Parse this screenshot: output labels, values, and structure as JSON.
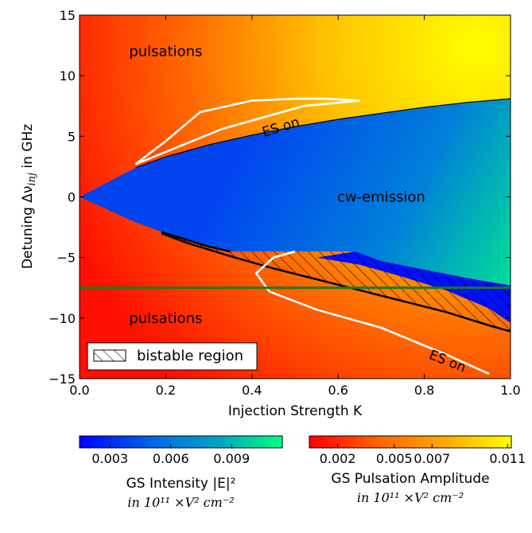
{
  "chart_data": {
    "type": "heatmap",
    "title": "",
    "xlabel": "Injection Strength K",
    "ylabel_prefix": "Detuning Δν",
    "ylabel_subscript": "inj",
    "ylabel_suffix": " in GHz",
    "xlim": [
      0.0,
      1.0
    ],
    "ylim": [
      -15,
      15
    ],
    "x_ticks": [
      0.0,
      0.2,
      0.4,
      0.6,
      0.8,
      1.0
    ],
    "x_tick_labels": [
      "0.0",
      "0.2",
      "0.4",
      "0.6",
      "0.8",
      "1.0"
    ],
    "y_ticks": [
      -15,
      -10,
      -5,
      0,
      5,
      10,
      15
    ],
    "y_tick_labels": [
      "−15",
      "−10",
      "−5",
      "0",
      "5",
      "10",
      "15"
    ],
    "regions": {
      "cw_upper_boundary": [
        [
          0.0,
          0.0
        ],
        [
          0.13,
          2.4
        ],
        [
          0.2,
          3.3
        ],
        [
          0.3,
          4.3
        ],
        [
          0.4,
          5.1
        ],
        [
          0.5,
          5.8
        ],
        [
          0.6,
          6.4
        ],
        [
          0.7,
          6.9
        ],
        [
          0.8,
          7.4
        ],
        [
          0.9,
          7.8
        ],
        [
          1.0,
          8.1
        ]
      ],
      "cw_lower_boundary": [
        [
          0.0,
          0.0
        ],
        [
          0.13,
          -2.1
        ],
        [
          0.2,
          -3.0
        ],
        [
          0.3,
          -4.1
        ],
        [
          0.35,
          -4.5
        ],
        [
          0.5,
          -4.5
        ],
        [
          0.64,
          -4.5
        ],
        [
          0.7,
          -5.3
        ],
        [
          0.8,
          -6.0
        ],
        [
          0.9,
          -6.7
        ],
        [
          1.0,
          -7.3
        ]
      ],
      "blue_lower_strip": [
        [
          0.55,
          -5.0
        ],
        [
          0.65,
          -5.6
        ],
        [
          0.75,
          -6.6
        ],
        [
          0.85,
          -7.7
        ],
        [
          0.95,
          -9.2
        ],
        [
          1.0,
          -10.4
        ]
      ],
      "bistable_lower": [
        [
          0.19,
          -3.0
        ],
        [
          0.25,
          -3.8
        ],
        [
          0.35,
          -4.9
        ],
        [
          0.45,
          -5.9
        ],
        [
          0.55,
          -6.8
        ],
        [
          0.65,
          -7.7
        ],
        [
          0.75,
          -8.6
        ],
        [
          0.85,
          -9.5
        ],
        [
          0.95,
          -10.6
        ],
        [
          1.0,
          -11.1
        ]
      ]
    },
    "es_on_curves": [
      {
        "name": "ES on (upper)",
        "points": [
          [
            0.13,
            2.7
          ],
          [
            0.2,
            4.6
          ],
          [
            0.28,
            7.0
          ],
          [
            0.4,
            7.95
          ],
          [
            0.5,
            8.1
          ],
          [
            0.57,
            8.1
          ],
          [
            0.65,
            7.95
          ],
          [
            0.52,
            7.5
          ],
          [
            0.42,
            6.5
          ],
          [
            0.33,
            5.6
          ],
          [
            0.22,
            4.0
          ],
          [
            0.13,
            2.7
          ]
        ]
      },
      {
        "name": "ES on (lower)",
        "points": [
          [
            0.5,
            -4.5
          ],
          [
            0.45,
            -5.0
          ],
          [
            0.41,
            -6.3
          ],
          [
            0.44,
            -7.8
          ],
          [
            0.55,
            -9.3
          ],
          [
            0.7,
            -10.8
          ],
          [
            0.85,
            -13.0
          ],
          [
            0.95,
            -14.6
          ]
        ]
      }
    ],
    "horizontal_line": {
      "y": -7.5,
      "color": "#1a7a1a"
    },
    "annotations": [
      {
        "text": "pulsations",
        "x": 0.2,
        "y": 12.0
      },
      {
        "text": "pulsations",
        "x": 0.2,
        "y": -10.0
      },
      {
        "text": "cw-emission",
        "x": 0.7,
        "y": 0.0
      },
      {
        "text": "ES on",
        "x": 0.47,
        "y": 5.8,
        "angle": -17,
        "color": "#ffffff"
      },
      {
        "text": "ES on",
        "x": 0.85,
        "y": -13.5,
        "angle": 22,
        "color": "#ffffff"
      }
    ],
    "legend": {
      "position": "bottom-left",
      "entries": [
        {
          "label": "bistable region",
          "pattern": "hatch"
        }
      ]
    },
    "colorbars": [
      {
        "name": "GS Intensity",
        "ticks": [
          0.003,
          0.006,
          0.009
        ],
        "tick_labels": [
          "0.003",
          "0.006",
          "0.009"
        ],
        "range": [
          0.0015,
          0.0115
        ],
        "colors": [
          "#0000ff",
          "#0070e0",
          "#00a8c0",
          "#00ff80"
        ],
        "label_line1": "GS Intensity |E|²",
        "label_line2": "in 10¹¹ ×V² cm⁻²"
      },
      {
        "name": "GS Pulsation Amplitude",
        "ticks": [
          0.002,
          0.005,
          0.007,
          0.011
        ],
        "tick_labels": [
          "0.002",
          "0.005",
          "0.007",
          "0.011"
        ],
        "range": [
          0.0005,
          0.0112
        ],
        "colors": [
          "#ff0000",
          "#ff6600",
          "#ffb000",
          "#ffff00"
        ],
        "label_line1": "GS Pulsation Amplitude",
        "label_line2": "in 10¹¹ ×V² cm⁻²"
      }
    ]
  }
}
